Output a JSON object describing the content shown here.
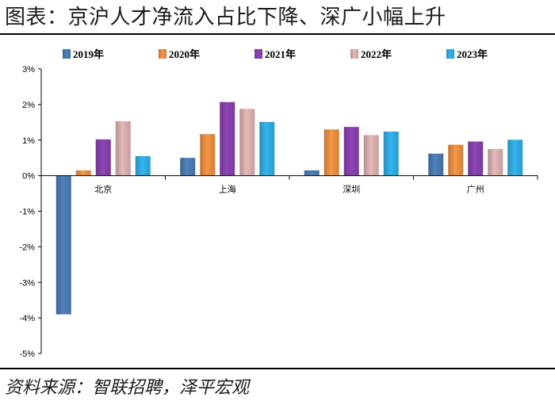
{
  "header": {
    "title": "图表：京沪人才净流入占比下降、深广小幅上升"
  },
  "footer": {
    "source": "资料来源：智联招聘，泽平宏观"
  },
  "chart_data": {
    "type": "bar",
    "title": "图表：京沪人才净流入占比下降、深广小幅上升",
    "xlabel": "",
    "ylabel": "",
    "categories": [
      "北京",
      "上海",
      "深圳",
      "广州"
    ],
    "ylim": [
      -5,
      3
    ],
    "yticks": [
      3,
      2,
      1,
      0,
      -1,
      -2,
      -3,
      -4,
      -5
    ],
    "ytick_labels": [
      "3%",
      "2%",
      "1%",
      "0%",
      "-1%",
      "-2%",
      "-3%",
      "-4%",
      "-5%"
    ],
    "unit": "%",
    "grid": false,
    "legend_position": "top",
    "series": [
      {
        "name": "2019年",
        "color": "#4f81bd",
        "values": [
          -3.9,
          0.5,
          0.15,
          0.62
        ]
      },
      {
        "name": "2020年",
        "color": "#f79646",
        "values": [
          0.15,
          1.17,
          1.3,
          0.87
        ]
      },
      {
        "name": "2021年",
        "color": "#8e44b8",
        "values": [
          1.02,
          2.07,
          1.37,
          0.96
        ]
      },
      {
        "name": "2022年",
        "color": "#e6b9b8",
        "values": [
          1.53,
          1.88,
          1.14,
          0.75
        ]
      },
      {
        "name": "2023年",
        "color": "#33b5f0",
        "values": [
          0.55,
          1.51,
          1.24,
          1.01
        ]
      }
    ]
  }
}
